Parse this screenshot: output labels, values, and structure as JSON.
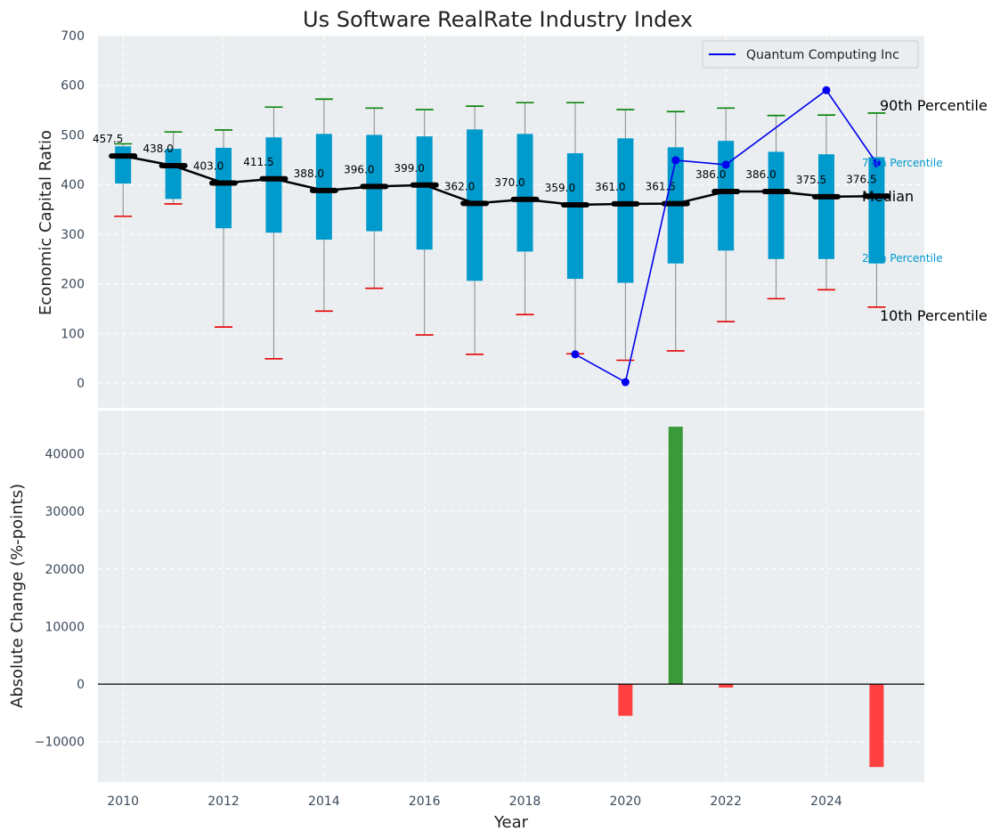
{
  "chart_data": [
    {
      "type": "box",
      "title": "Us Software RealRate Industry Index",
      "ylabel": "Economic Capital Ratio",
      "xlabel": "",
      "ylim": [
        -50,
        700
      ],
      "xlim": [
        2009.5,
        2025.95
      ],
      "yticks": [
        0,
        100,
        200,
        300,
        400,
        500,
        600,
        700
      ],
      "grid": true,
      "legend_position": "top-right",
      "x": [
        2010,
        2011,
        2012,
        2013,
        2014,
        2015,
        2016,
        2017,
        2018,
        2019,
        2020,
        2021,
        2022,
        2023,
        2024,
        2025
      ],
      "p10": [
        336,
        361,
        113,
        49,
        145,
        191,
        97,
        58,
        138,
        59,
        46,
        65,
        124,
        170,
        188,
        153
      ],
      "p25": [
        402,
        371,
        312,
        303,
        289,
        306,
        269,
        206,
        265,
        210,
        202,
        241,
        267,
        250,
        250,
        241
      ],
      "median": [
        457.5,
        438.0,
        403.0,
        411.5,
        388.0,
        396.0,
        399.0,
        362.0,
        370.0,
        359.0,
        361.0,
        361.5,
        386.0,
        386.0,
        375.5,
        376.5
      ],
      "median_labels": [
        "457.5",
        "438.0",
        "403.0",
        "411.5",
        "388.0",
        "396.0",
        "399.0",
        "362.0",
        "370.0",
        "359.0",
        "361.0",
        "361.5",
        "386.0",
        "386.0",
        "375.5",
        "376.5"
      ],
      "p75": [
        477,
        472,
        474,
        495,
        502,
        500,
        497,
        511,
        502,
        463,
        493,
        475,
        488,
        466,
        461,
        455
      ],
      "p90": [
        482,
        506,
        510,
        556,
        572,
        554,
        551,
        558,
        565,
        565,
        551,
        547,
        554,
        539,
        540,
        544
      ],
      "company_series": {
        "name": "Quantum Computing Inc",
        "x": [
          2019,
          2020,
          2021,
          2022,
          2024,
          2025
        ],
        "values": [
          58,
          2,
          449,
          440,
          590,
          443
        ]
      },
      "annotations": {
        "p90": "90th Percentile",
        "p75": "75th Percentile",
        "median": "Median",
        "p25": "25th Percentile",
        "p10": "10th Percentile"
      },
      "colors": {
        "background": "#eaeef0",
        "box": "#009acd",
        "whisker": "#888888",
        "p90_cap": "#008000",
        "p10_cap": "#e60000",
        "median": "#000000",
        "company": "#0000ee",
        "annot_small": "#009acd"
      }
    },
    {
      "type": "bar",
      "ylabel": "Absolute Change (%-points)",
      "xlabel": "Year",
      "ylim": [
        -17000,
        47500
      ],
      "yticks": [
        -10000,
        0,
        10000,
        20000,
        30000,
        40000
      ],
      "ytick_labels": [
        "−10000",
        "0",
        "10000",
        "20000",
        "30000",
        "40000"
      ],
      "xticks": [
        2010,
        2012,
        2014,
        2016,
        2018,
        2020,
        2022,
        2024
      ],
      "xtick_labels": [
        "2010",
        "2012",
        "2014",
        "2016",
        "2018",
        "2020",
        "2022",
        "2024"
      ],
      "grid": true,
      "categories": [
        2020,
        2021,
        2022,
        2025
      ],
      "values": [
        -5500,
        44700,
        -600,
        -14400
      ],
      "colors": {
        "positive": "#3a9a3a",
        "negative": "#ff4040",
        "zero_line": "#000000",
        "background": "#eaeef0"
      }
    }
  ]
}
